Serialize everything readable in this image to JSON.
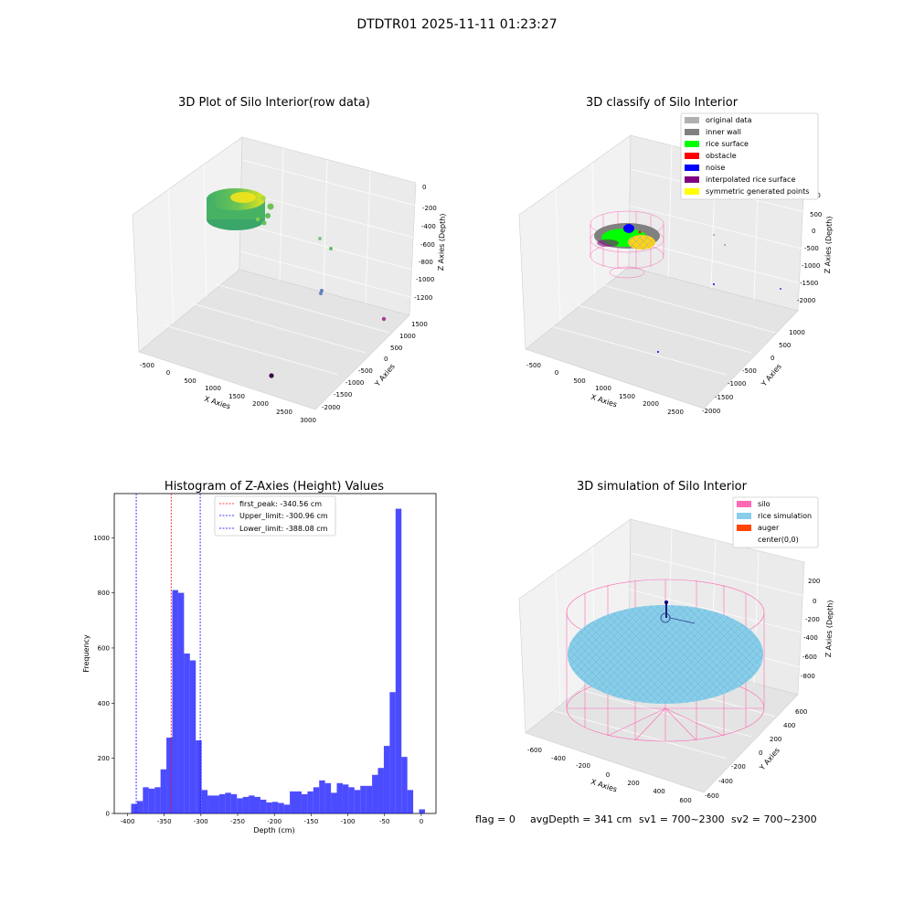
{
  "figure": {
    "suptitle": "DTDTR01 2025-11-11 01:23:27",
    "footer": {
      "flag": "flag = 0",
      "avg_depth": "avgDepth = 341 cm",
      "sv1": "sv1 = 700~2300",
      "sv2": "sv2 = 700~2300"
    }
  },
  "chart_data": [
    {
      "id": "raw",
      "type": "scatter",
      "title": "3D Plot of Silo Interior(row data)",
      "xlabel": "X Axies",
      "ylabel": "Y Axies",
      "zlabel": "Z Axies (Depth)",
      "x_ticks": [
        "-500",
        "0",
        "500",
        "1000",
        "1500",
        "2000",
        "2500",
        "3000"
      ],
      "y_ticks": [
        "1500",
        "1000",
        "500",
        "0",
        "-500",
        "-1000",
        "-1500",
        "-2000"
      ],
      "z_ticks": [
        "0",
        "-200",
        "-400",
        "-600",
        "-800",
        "-1000",
        "-1200"
      ],
      "outlier_colors": [
        "#8fbc8f",
        "#66bb6a",
        "#5c7fbf",
        "#6a7fc0",
        "#a23a9a",
        "#3b0a45"
      ],
      "colormap": [
        "#3b9f67",
        "#5cc060",
        "#9dd93b",
        "#d6e21c",
        "#fde725"
      ]
    },
    {
      "id": "classify",
      "type": "scatter",
      "title": "3D classify of Silo Interior",
      "xlabel": "X Axies",
      "ylabel": "Y Axies",
      "zlabel": "Z Axies (Depth)",
      "x_ticks": [
        "-500",
        "0",
        "500",
        "1000",
        "1500",
        "2000",
        "2500"
      ],
      "y_ticks": [
        "1000",
        "500",
        "0",
        "-500",
        "-1000",
        "-1500",
        "-2000"
      ],
      "z_ticks": [
        "1000",
        "500",
        "0",
        "-500",
        "-1000",
        "-1500",
        "-2000"
      ],
      "legend": [
        {
          "label": "original data",
          "color": "#b0b0b0"
        },
        {
          "label": "inner wall",
          "color": "#808080"
        },
        {
          "label": "rice surface",
          "color": "#00ff00"
        },
        {
          "label": "obstacle",
          "color": "#ff0000"
        },
        {
          "label": "noise",
          "color": "#0000ff"
        },
        {
          "label": "interpolated rice surface",
          "color": "#800080"
        },
        {
          "label": "symmetric generated points",
          "color": "#ffff00"
        }
      ]
    },
    {
      "id": "histogram",
      "type": "bar",
      "title": "Histogram of Z-Axies (Height) Values",
      "xlabel": "Depth (cm)",
      "ylabel": "Frequency",
      "xlim": [
        -418,
        20
      ],
      "ylim": [
        0,
        1160
      ],
      "x_ticks": [
        -400,
        -350,
        -300,
        -250,
        -200,
        -150,
        -100,
        -50,
        0
      ],
      "y_ticks": [
        0,
        200,
        400,
        600,
        800,
        1000
      ],
      "bar_color": "#0000ff",
      "bin_width": 8,
      "bins": [
        [
          -395,
          35
        ],
        [
          -387,
          45
        ],
        [
          -379,
          95
        ],
        [
          -371,
          90
        ],
        [
          -363,
          95
        ],
        [
          -355,
          160
        ],
        [
          -347,
          275
        ],
        [
          -339,
          810
        ],
        [
          -331,
          800
        ],
        [
          -323,
          580
        ],
        [
          -315,
          555
        ],
        [
          -307,
          265
        ],
        [
          -299,
          85
        ],
        [
          -291,
          65
        ],
        [
          -283,
          65
        ],
        [
          -275,
          70
        ],
        [
          -267,
          75
        ],
        [
          -259,
          70
        ],
        [
          -251,
          55
        ],
        [
          -243,
          60
        ],
        [
          -235,
          65
        ],
        [
          -227,
          60
        ],
        [
          -219,
          50
        ],
        [
          -211,
          40
        ],
        [
          -203,
          42
        ],
        [
          -195,
          38
        ],
        [
          -187,
          32
        ],
        [
          -179,
          80
        ],
        [
          -171,
          80
        ],
        [
          -163,
          70
        ],
        [
          -155,
          80
        ],
        [
          -147,
          95
        ],
        [
          -139,
          120
        ],
        [
          -131,
          110
        ],
        [
          -123,
          75
        ],
        [
          -115,
          110
        ],
        [
          -107,
          105
        ],
        [
          -99,
          95
        ],
        [
          -91,
          85
        ],
        [
          -83,
          100
        ],
        [
          -75,
          100
        ],
        [
          -67,
          140
        ],
        [
          -59,
          165
        ],
        [
          -51,
          245
        ],
        [
          -43,
          440
        ],
        [
          -35,
          1105
        ],
        [
          -27,
          205
        ],
        [
          -19,
          85
        ],
        [
          -11,
          0
        ],
        [
          -3,
          15
        ]
      ],
      "vlines": [
        {
          "label": "first_peak: -340.56 cm",
          "x": -340.56,
          "color": "#ff0000"
        },
        {
          "label": "Upper_limit: -300.96 cm",
          "x": -300.96,
          "color": "#0000ff"
        },
        {
          "label": "Lower_limit: -388.08 cm",
          "x": -388.08,
          "color": "#0000ff"
        }
      ]
    },
    {
      "id": "simulation",
      "type": "scatter",
      "title": "3D simulation of Silo Interior",
      "xlabel": "X Axies",
      "ylabel": "Y Axies",
      "zlabel": "Z Axies (Depth)",
      "x_ticks": [
        "-600",
        "-400",
        "-200",
        "0",
        "200",
        "400",
        "600"
      ],
      "y_ticks": [
        "600",
        "400",
        "200",
        "0",
        "-200",
        "-400",
        "-600"
      ],
      "z_ticks": [
        "200",
        "0",
        "-200",
        "-400",
        "-600",
        "-800"
      ],
      "legend": [
        {
          "label": "silo",
          "color": "#ff69b4"
        },
        {
          "label": "rice simulation",
          "color": "#87ceeb"
        },
        {
          "label": "auger",
          "color": "#ff4500"
        },
        {
          "label": "center(0,0)",
          "color": ""
        }
      ]
    }
  ]
}
